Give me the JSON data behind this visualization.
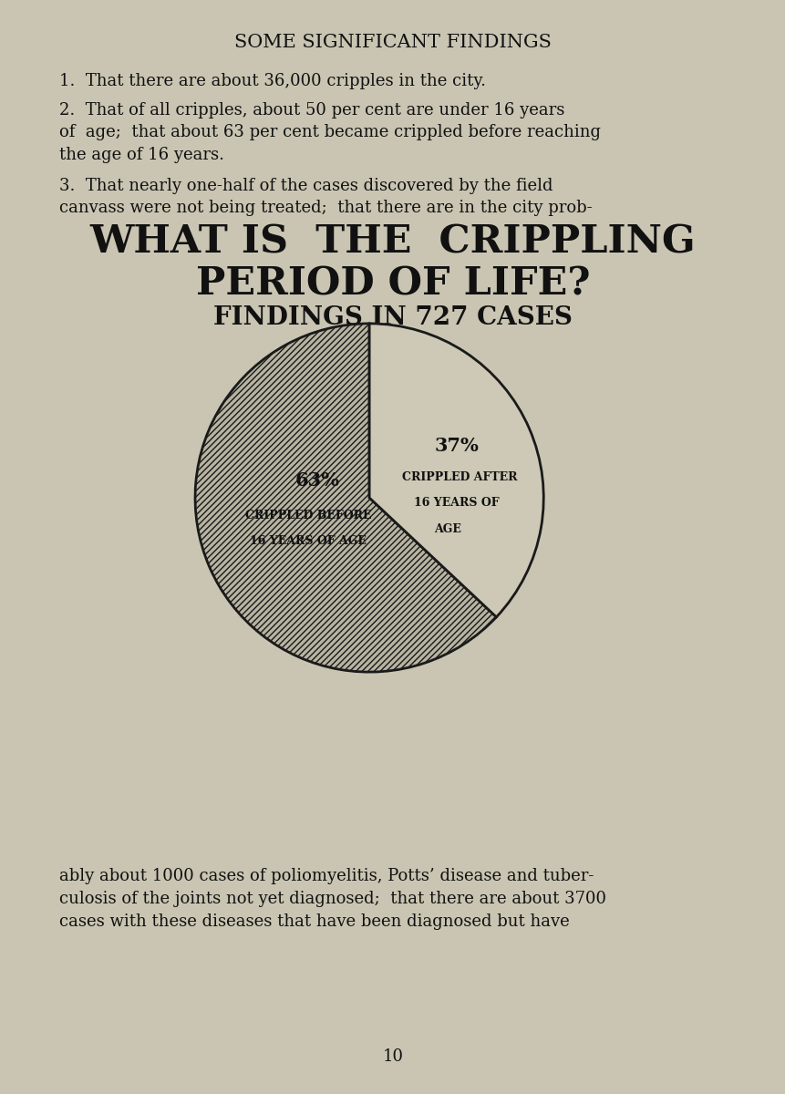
{
  "background_color": "#c9c5b2",
  "page_title": "SOME SIGNIFICANT FINDINGS",
  "para1": "1.  That there are about 36,000 cripples in the city.",
  "para2": "2.  That of all cripples, about 50 per cent are under 16 years\nof  age;  that about 63 per cent became crippled before reaching\nthe age of 16 years.",
  "para3": "3.  That nearly one-half of the cases discovered by the field\ncanvass were not being treated;  that there are in the city prob-",
  "big_title_line1": "WHAT IS  THE  CRIPPLING",
  "big_title_line2": "PERIOD OF LIFE?",
  "sub_title": "FINDINGS IN 727 CASES",
  "slice1_pct": 63,
  "slice2_pct": 37,
  "slice1_label_pct": "63%",
  "slice1_label_desc1": "CRIPPLED BEFORE",
  "slice1_label_desc2": "16 YEARS OF AGE",
  "slice2_label_pct": "37%",
  "slice2_label_desc1": "CRIPPLED AFTER",
  "slice2_label_desc2": "16 YEARS OF",
  "slice2_label_desc3": "AGE",
  "bottom_text": "ably about 1000 cases of poliomyelitis, Potts’ disease and tuber-\nculosis of the joints not yet diagnosed;  that there are about 3700\ncases with these diseases that have been diagnosed but have",
  "page_number": "10",
  "edge_color": "#1a1a1a",
  "slice1_facecolor": "#b8b4a2",
  "slice2_facecolor": "#cdc9b6"
}
